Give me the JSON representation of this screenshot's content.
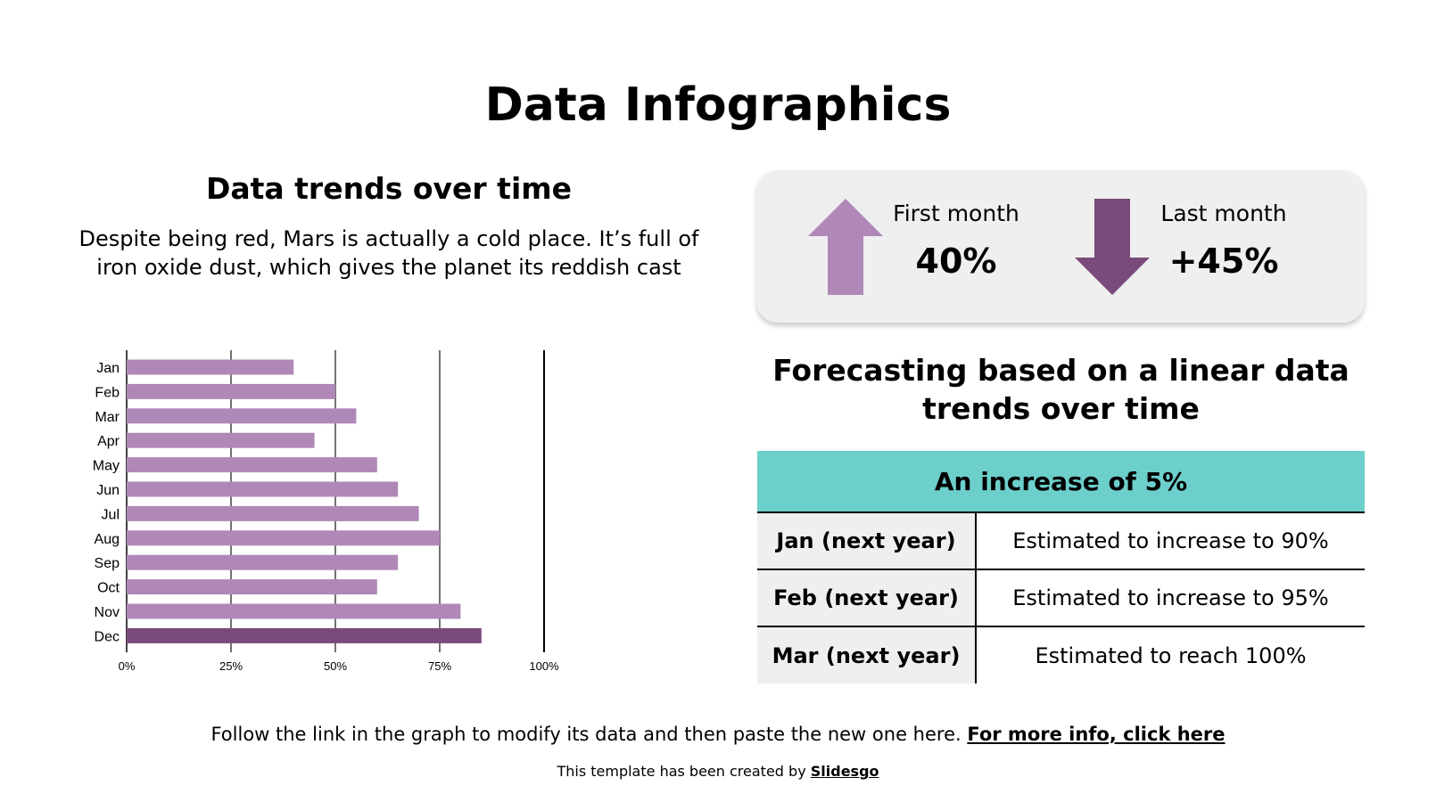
{
  "title": "Data Infographics",
  "left": {
    "subtitle": "Data trends over time",
    "paragraph": "Despite being red, Mars is actually a cold place. It’s full of iron oxide dust, which gives the planet its reddish cast"
  },
  "stats": {
    "first": {
      "label": "First month",
      "value": "40%",
      "icon": "arrow-up-icon"
    },
    "last": {
      "label": "Last month",
      "value": "+45%",
      "icon": "arrow-down-icon"
    }
  },
  "forecast": {
    "heading": "Forecasting based on a linear data trends over time",
    "table_header": "An increase of 5%",
    "rows": [
      {
        "key": "Jan (next year)",
        "value": "Estimated to increase to 90%"
      },
      {
        "key": "Feb (next year)",
        "value": "Estimated to increase to 95%"
      },
      {
        "key": "Mar (next year)",
        "value": "Estimated to reach 100%"
      }
    ]
  },
  "footer": {
    "text": "Follow the link in the graph to modify its data and then paste the new one here. ",
    "link": "For more info, click here",
    "credit": "This template has been created by ",
    "credit_link": "Slidesgo"
  },
  "colors": {
    "bar": "#b088b7",
    "highlight": "#7a4a7a",
    "table_header": "#6dcfcb",
    "panel": "#efefef"
  },
  "chart_data": {
    "type": "bar",
    "orientation": "horizontal",
    "categories": [
      "Jan",
      "Feb",
      "Mar",
      "Apr",
      "May",
      "Jun",
      "Jul",
      "Aug",
      "Sep",
      "Oct",
      "Nov",
      "Dec"
    ],
    "values": [
      40,
      50,
      55,
      45,
      60,
      65,
      70,
      75,
      65,
      60,
      80,
      85
    ],
    "xlim": [
      0,
      100
    ],
    "x_ticks": [
      "0%",
      "25%",
      "50%",
      "75%",
      "100%"
    ],
    "grid": true,
    "highlight": "Dec"
  }
}
